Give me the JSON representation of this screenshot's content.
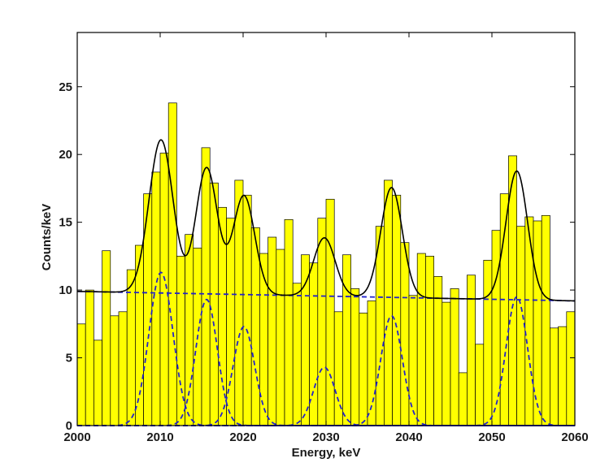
{
  "chart_data": {
    "type": "bar",
    "title": "",
    "xlabel": "Energy, keV",
    "ylabel": "Counts/keV",
    "xlim": [
      2000,
      2060
    ],
    "ylim": [
      0,
      29
    ],
    "xticks": [
      2000,
      2010,
      2020,
      2030,
      2040,
      2050,
      2060
    ],
    "yticks": [
      0,
      5,
      10,
      15,
      20,
      25
    ],
    "grid": false,
    "bar_color": "#ffff00",
    "bar_edge_color": "#000000",
    "fit_color": "#000000",
    "component_color": "#2222cc",
    "bin_width": 1,
    "bins": [
      {
        "x": 2000,
        "y": 7.5
      },
      {
        "x": 2001,
        "y": 10.0
      },
      {
        "x": 2002,
        "y": 6.3
      },
      {
        "x": 2003,
        "y": 12.9
      },
      {
        "x": 2004,
        "y": 8.1
      },
      {
        "x": 2005,
        "y": 8.4
      },
      {
        "x": 2006,
        "y": 11.5
      },
      {
        "x": 2007,
        "y": 13.3
      },
      {
        "x": 2008,
        "y": 17.1
      },
      {
        "x": 2009,
        "y": 18.7
      },
      {
        "x": 2010,
        "y": 20.1
      },
      {
        "x": 2011,
        "y": 23.8
      },
      {
        "x": 2012,
        "y": 12.5
      },
      {
        "x": 2013,
        "y": 14.1
      },
      {
        "x": 2014,
        "y": 13.1
      },
      {
        "x": 2015,
        "y": 20.5
      },
      {
        "x": 2016,
        "y": 17.9
      },
      {
        "x": 2017,
        "y": 16.1
      },
      {
        "x": 2018,
        "y": 15.3
      },
      {
        "x": 2019,
        "y": 18.1
      },
      {
        "x": 2020,
        "y": 17.0
      },
      {
        "x": 2021,
        "y": 14.6
      },
      {
        "x": 2022,
        "y": 12.7
      },
      {
        "x": 2023,
        "y": 13.9
      },
      {
        "x": 2024,
        "y": 13.0
      },
      {
        "x": 2025,
        "y": 15.2
      },
      {
        "x": 2026,
        "y": 10.5
      },
      {
        "x": 2027,
        "y": 12.6
      },
      {
        "x": 2028,
        "y": 12.0
      },
      {
        "x": 2029,
        "y": 15.3
      },
      {
        "x": 2030,
        "y": 16.7
      },
      {
        "x": 2031,
        "y": 8.4
      },
      {
        "x": 2032,
        "y": 12.6
      },
      {
        "x": 2033,
        "y": 10.1
      },
      {
        "x": 2034,
        "y": 8.3
      },
      {
        "x": 2035,
        "y": 9.2
      },
      {
        "x": 2036,
        "y": 14.7
      },
      {
        "x": 2037,
        "y": 18.1
      },
      {
        "x": 2038,
        "y": 17.0
      },
      {
        "x": 2039,
        "y": 13.5
      },
      {
        "x": 2040,
        "y": 9.6
      },
      {
        "x": 2041,
        "y": 12.7
      },
      {
        "x": 2042,
        "y": 12.5
      },
      {
        "x": 2043,
        "y": 11.0
      },
      {
        "x": 2044,
        "y": 9.1
      },
      {
        "x": 2045,
        "y": 10.1
      },
      {
        "x": 2046,
        "y": 3.9
      },
      {
        "x": 2047,
        "y": 11.1
      },
      {
        "x": 2048,
        "y": 6.0
      },
      {
        "x": 2049,
        "y": 12.2
      },
      {
        "x": 2050,
        "y": 14.4
      },
      {
        "x": 2051,
        "y": 17.1
      },
      {
        "x": 2052,
        "y": 19.9
      },
      {
        "x": 2053,
        "y": 14.7
      },
      {
        "x": 2054,
        "y": 15.4
      },
      {
        "x": 2055,
        "y": 15.1
      },
      {
        "x": 2056,
        "y": 15.5
      },
      {
        "x": 2057,
        "y": 7.2
      },
      {
        "x": 2058,
        "y": 7.3
      },
      {
        "x": 2059,
        "y": 8.4
      }
    ],
    "background_line": {
      "x_start": 2000,
      "y_start": 9.9,
      "x_end": 2060,
      "y_end": 9.2
    },
    "peaks": [
      {
        "center": 2010.1,
        "height": 11.3,
        "sigma": 1.45
      },
      {
        "center": 2015.6,
        "height": 9.3,
        "sigma": 1.3
      },
      {
        "center": 2020.1,
        "height": 7.3,
        "sigma": 1.3
      },
      {
        "center": 2029.8,
        "height": 4.3,
        "sigma": 1.3
      },
      {
        "center": 2037.9,
        "height": 8.1,
        "sigma": 1.3
      },
      {
        "center": 2053.0,
        "height": 9.5,
        "sigma": 1.3
      }
    ]
  }
}
